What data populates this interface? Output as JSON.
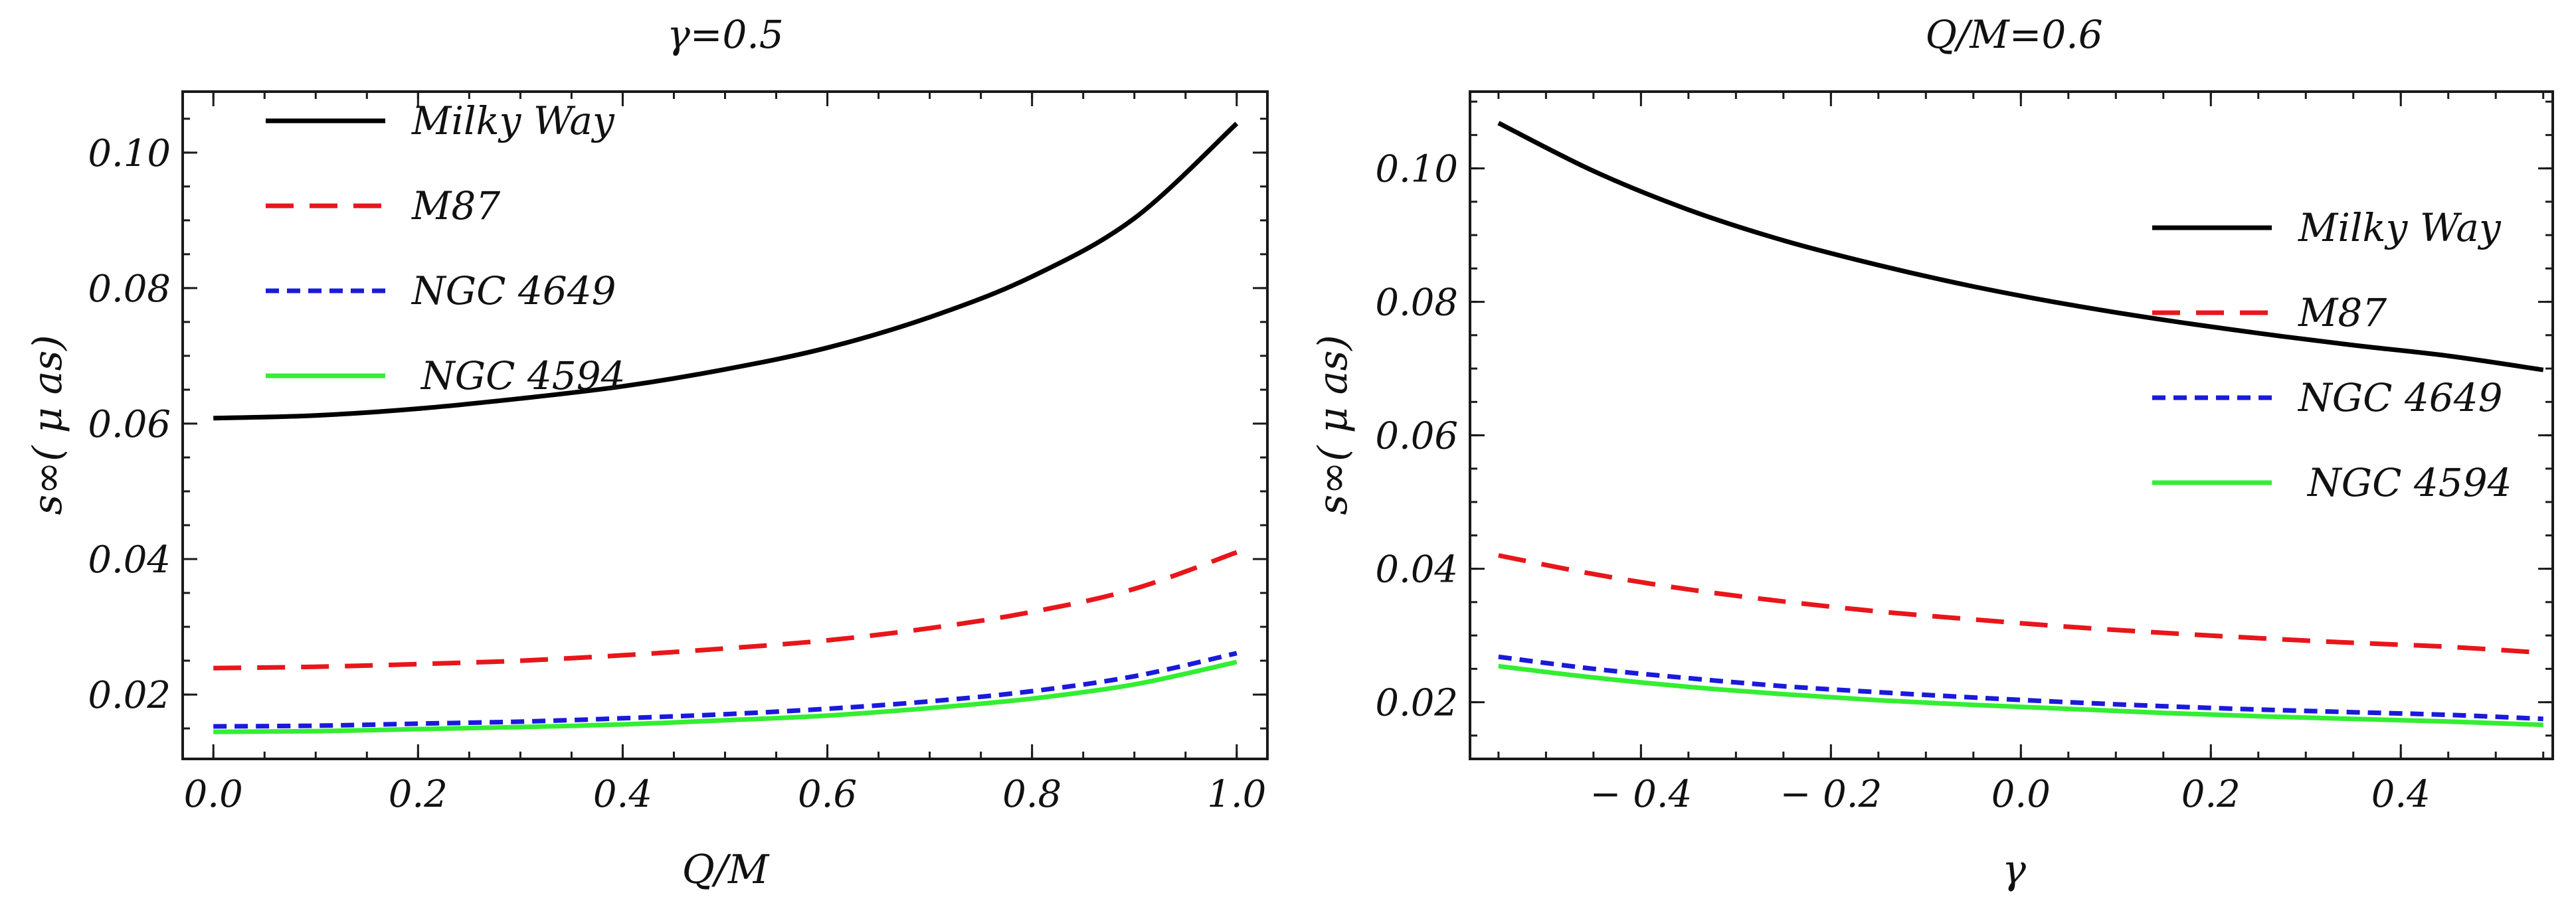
{
  "chart_data": [
    {
      "type": "line",
      "title": "γ=0.5",
      "xlabel": "Q/M",
      "ylabel": "s∞( μ as)",
      "xlim": [
        -0.03,
        1.03
      ],
      "ylim": [
        0.0105,
        0.109
      ],
      "xticks": [
        0.0,
        0.2,
        0.4,
        0.6,
        0.8,
        1.0
      ],
      "xtick_labels": [
        "0.0",
        "0.2",
        "0.4",
        "0.6",
        "0.8",
        "1.0"
      ],
      "yticks": [
        0.02,
        0.04,
        0.06,
        0.08,
        0.1
      ],
      "ytick_labels": [
        "0.02",
        "0.04",
        "0.06",
        "0.08",
        "0.10"
      ],
      "grid": false,
      "legend_position": "top-left",
      "x": [
        0.0,
        0.1,
        0.2,
        0.3,
        0.4,
        0.5,
        0.6,
        0.7,
        0.8,
        0.9,
        1.0
      ],
      "series": [
        {
          "name": "Milky Way",
          "color": "#000000",
          "dash": "solid",
          "values": [
            0.0608,
            0.0612,
            0.0622,
            0.0637,
            0.0655,
            0.068,
            0.0712,
            0.0757,
            0.0817,
            0.0903,
            0.1043
          ]
        },
        {
          "name": "M87",
          "color": "#e8161b",
          "dash": "long-dash",
          "values": [
            0.0239,
            0.0241,
            0.0245,
            0.025,
            0.0258,
            0.0268,
            0.028,
            0.0298,
            0.0322,
            0.0356,
            0.041
          ]
        },
        {
          "name": "NGC 4649",
          "color": "#1a1adb",
          "dash": "short-dash",
          "values": [
            0.0153,
            0.0154,
            0.0157,
            0.016,
            0.0165,
            0.0171,
            0.0179,
            0.019,
            0.0205,
            0.0227,
            0.0261
          ]
        },
        {
          "name": "NGC 4594",
          "color": "#33ee33",
          "dash": "solid",
          "values": [
            0.0145,
            0.0146,
            0.0149,
            0.0152,
            0.0156,
            0.0162,
            0.0169,
            0.018,
            0.0194,
            0.0215,
            0.0248
          ]
        }
      ]
    },
    {
      "type": "line",
      "title": "Q/M=0.6",
      "xlabel": "γ",
      "ylabel": "s∞( μ as)",
      "xlim": [
        -0.58,
        0.56
      ],
      "ylim": [
        0.0115,
        0.1115
      ],
      "xticks": [
        -0.4,
        -0.2,
        0.0,
        0.2,
        0.4
      ],
      "xtick_labels": [
        "− 0.4",
        "− 0.2",
        "0.0",
        "0.2",
        "0.4"
      ],
      "yticks": [
        0.02,
        0.04,
        0.06,
        0.08,
        0.1
      ],
      "ytick_labels": [
        "0.02",
        "0.04",
        "0.06",
        "0.08",
        "0.10"
      ],
      "grid": false,
      "legend_position": "right",
      "x": [
        -0.55,
        -0.45,
        -0.35,
        -0.25,
        -0.15,
        -0.05,
        0.05,
        0.15,
        0.25,
        0.35,
        0.45,
        0.55
      ],
      "series": [
        {
          "name": "Milky Way",
          "color": "#000000",
          "dash": "solid",
          "values": [
            0.1068,
            0.0996,
            0.0938,
            0.0892,
            0.0855,
            0.0823,
            0.0796,
            0.0773,
            0.0753,
            0.0735,
            0.0719,
            0.0698
          ]
        },
        {
          "name": "M87",
          "color": "#e8161b",
          "dash": "long-dash",
          "values": [
            0.042,
            0.0392,
            0.0369,
            0.0351,
            0.0336,
            0.0324,
            0.0313,
            0.0304,
            0.0296,
            0.0289,
            0.0283,
            0.0274
          ]
        },
        {
          "name": "NGC 4649",
          "color": "#1a1adb",
          "dash": "short-dash",
          "values": [
            0.0268,
            0.025,
            0.0236,
            0.0224,
            0.0215,
            0.0207,
            0.02,
            0.0194,
            0.0189,
            0.0185,
            0.0181,
            0.0175
          ]
        },
        {
          "name": "NGC 4594",
          "color": "#33ee33",
          "dash": "solid",
          "values": [
            0.0254,
            0.0237,
            0.0223,
            0.0212,
            0.0203,
            0.0196,
            0.019,
            0.0184,
            0.0179,
            0.0175,
            0.0171,
            0.0166
          ]
        }
      ]
    }
  ]
}
